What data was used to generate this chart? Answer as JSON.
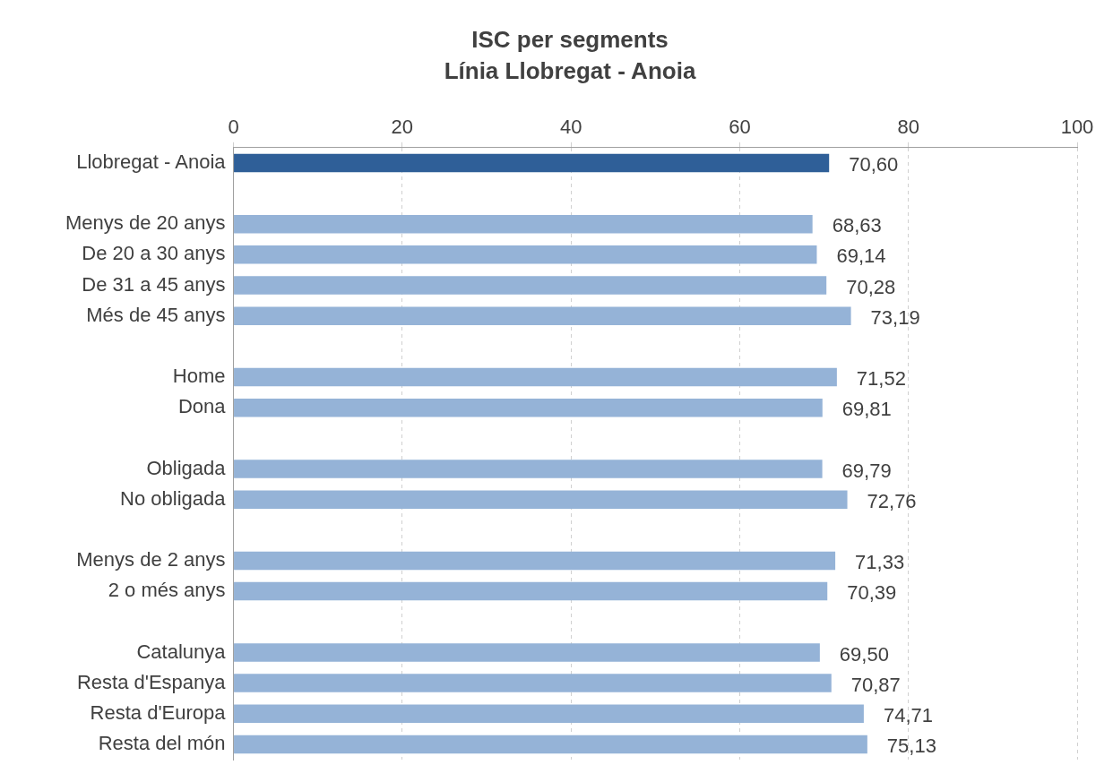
{
  "chart_data": {
    "type": "bar",
    "orientation": "horizontal",
    "title": "ISC per segments",
    "subtitle": "Línia Llobregat - Anoia",
    "categories": [
      "Llobregat - Anoia",
      null,
      "Menys de 20 anys",
      "De 20 a 30 anys",
      "De 31 a 45 anys",
      "Més de 45 anys",
      null,
      "Home",
      "Dona",
      null,
      "Obligada",
      "No obligada",
      null,
      "Menys de 2 anys",
      "2 o més anys",
      null,
      "Catalunya",
      "Resta d'Espanya",
      "Resta d'Europa",
      "Resta del món"
    ],
    "values": [
      70.6,
      null,
      68.63,
      69.14,
      70.28,
      73.19,
      null,
      71.52,
      69.81,
      null,
      69.79,
      72.76,
      null,
      71.33,
      70.39,
      null,
      69.5,
      70.87,
      74.71,
      75.13
    ],
    "value_labels": [
      "70,60",
      null,
      "68,63",
      "69,14",
      "70,28",
      "73,19",
      null,
      "71,52",
      "69,81",
      null,
      "69,79",
      "72,76",
      null,
      "71,33",
      "70,39",
      null,
      "69,50",
      "70,87",
      "74,71",
      "75,13"
    ],
    "colors": [
      "#2f5f98",
      "#95b3d7",
      "#95b3d7",
      "#95b3d7",
      "#95b3d7",
      "#95b3d7",
      "#95b3d7",
      "#95b3d7",
      "#95b3d7",
      "#95b3d7",
      "#95b3d7",
      "#95b3d7",
      "#95b3d7",
      "#95b3d7",
      "#95b3d7",
      "#95b3d7",
      "#95b3d7",
      "#95b3d7",
      "#95b3d7",
      "#95b3d7"
    ],
    "xlim": [
      0,
      100
    ],
    "xticks": [
      0,
      20,
      40,
      60,
      80,
      100
    ],
    "grid": "x",
    "legend": false
  }
}
